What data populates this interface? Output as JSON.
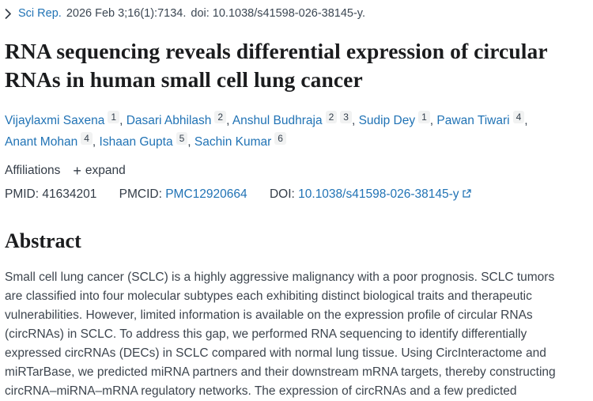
{
  "journal_line": {
    "journal": "Sci Rep.",
    "citation": "2026 Feb 3;16(1):7134.",
    "doi_text": "doi: 10.1038/s41598-026-38145-y."
  },
  "title": "RNA sequencing reveals differential expression of circular RNAs in human small cell lung cancer",
  "authors": [
    {
      "name": "Vijaylaxmi Saxena",
      "sups": [
        "1"
      ]
    },
    {
      "name": "Dasari Abhilash",
      "sups": [
        "2"
      ]
    },
    {
      "name": "Anshul Budhraja",
      "sups": [
        "2",
        "3"
      ]
    },
    {
      "name": "Sudip Dey",
      "sups": [
        "1"
      ]
    },
    {
      "name": "Pawan Tiwari",
      "sups": [
        "4"
      ]
    },
    {
      "name": "Anant Mohan",
      "sups": [
        "4"
      ]
    },
    {
      "name": "Ishaan Gupta",
      "sups": [
        "5"
      ]
    },
    {
      "name": "Sachin Kumar",
      "sups": [
        "6"
      ]
    }
  ],
  "affiliations_row": {
    "label": "Affiliations",
    "expand_label": "expand"
  },
  "identifiers": {
    "pmid_label": "PMID:",
    "pmid": "41634201",
    "pmcid_label": "PMCID:",
    "pmcid": "PMC12920664",
    "doi_label": "DOI:",
    "doi": "10.1038/s41598-026-38145-y"
  },
  "abstract": {
    "heading": "Abstract",
    "paragraph": "Small cell lung cancer (SCLC) is a highly aggressive malignancy with a poor prognosis. SCLC tumors are classified into four molecular subtypes each exhibiting distinct biological traits and therapeutic vulnerabilities. However, limited information is available on the expression profile of circular RNAs (circRNAs) in SCLC. To address this gap, we performed RNA sequencing to identify differentially expressed circRNAs (DECs) in SCLC compared with normal lung tissue. Using CircInteractome and miRTarBase, we predicted miRNA partners and their downstream mRNA targets, thereby constructing circRNA–miRNA–mRNA regulatory networks. The expression of circRNAs and a few predicted"
  },
  "icons": {
    "chevron": "chevron-right",
    "plus": "+",
    "external_link": "external-link"
  },
  "colors": {
    "link_blue": "#2173b5",
    "title_text": "#1b1c1e",
    "body_text": "#3d454e",
    "sup_background": "#f1f2f2"
  }
}
